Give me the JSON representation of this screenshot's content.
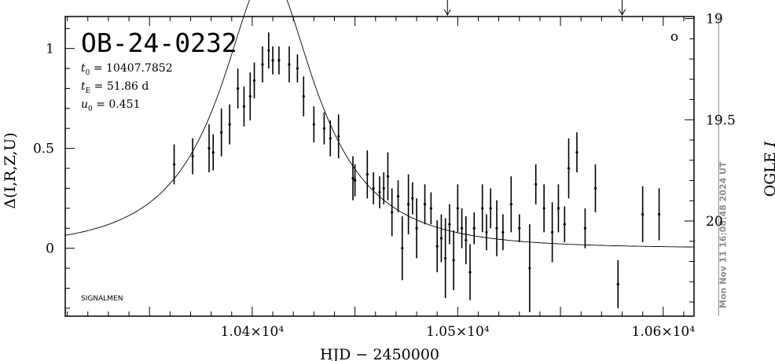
{
  "chart_data": {
    "type": "scatter",
    "title": "OB-24-0232",
    "xlabel": "HJD − 2450000",
    "ylabel": "Δ(I,R,Z,U)",
    "ylabel_right": "OGLE I",
    "xlim": [
      10309,
      10615
    ],
    "ylim": [
      -0.34,
      1.16
    ],
    "x_ticks": [
      {
        "value": 10400,
        "label": "1.04×10⁴"
      },
      {
        "value": 10500,
        "label": "1.05×10⁴"
      },
      {
        "value": 10600,
        "label": "1.06×10⁴"
      }
    ],
    "y_ticks": [
      {
        "value": 0,
        "label": "0"
      },
      {
        "value": 0.5,
        "label": "0.5"
      },
      {
        "value": 1,
        "label": "1"
      }
    ],
    "right_axis_ticks": [
      {
        "value": 19,
        "label": "19"
      },
      {
        "value": 19.5,
        "label": "19.5"
      },
      {
        "value": 20,
        "label": "20"
      }
    ],
    "right_axis_range": [
      18.99,
      20.47
    ],
    "grid": false,
    "params": [
      {
        "symbol": "t",
        "sub": "0",
        "text": " = 10407.7852"
      },
      {
        "symbol": "t",
        "sub": "E",
        "text": " = 51.86 d"
      },
      {
        "symbol": "u",
        "sub": "0",
        "text": " = 0.451"
      }
    ],
    "timestamp": "Mon Nov 11 16:08:48 2024 UT",
    "timestamp_x": 10627,
    "marker_glyph": "o",
    "footer": "SIGNALMEN",
    "arrow_x": [
      10495,
      10580
    ],
    "model": {
      "t0": 10407.7852,
      "tE": 51.86,
      "u0": 0.451,
      "x_end": 10615
    },
    "points": [
      {
        "x": 10362,
        "y": 0.42,
        "e": 0.1
      },
      {
        "x": 10371,
        "y": 0.46,
        "e": 0.09
      },
      {
        "x": 10379,
        "y": 0.5,
        "e": 0.12
      },
      {
        "x": 10381,
        "y": 0.48,
        "e": 0.09
      },
      {
        "x": 10385,
        "y": 0.58,
        "e": 0.12
      },
      {
        "x": 10389,
        "y": 0.62,
        "e": 0.1
      },
      {
        "x": 10393,
        "y": 0.8,
        "e": 0.1
      },
      {
        "x": 10396,
        "y": 0.71,
        "e": 0.1
      },
      {
        "x": 10399,
        "y": 0.76,
        "e": 0.12
      },
      {
        "x": 10401,
        "y": 0.84,
        "e": 0.09
      },
      {
        "x": 10405,
        "y": 0.92,
        "e": 0.09
      },
      {
        "x": 10408,
        "y": 0.99,
        "e": 0.09
      },
      {
        "x": 10410,
        "y": 0.94,
        "e": 0.07
      },
      {
        "x": 10413,
        "y": 0.94,
        "e": 0.07
      },
      {
        "x": 10418,
        "y": 0.92,
        "e": 0.09
      },
      {
        "x": 10422,
        "y": 0.9,
        "e": 0.07
      },
      {
        "x": 10425,
        "y": 0.76,
        "e": 0.1
      },
      {
        "x": 10430,
        "y": 0.62,
        "e": 0.09
      },
      {
        "x": 10435,
        "y": 0.6,
        "e": 0.08
      },
      {
        "x": 10438,
        "y": 0.55,
        "e": 0.09
      },
      {
        "x": 10442,
        "y": 0.56,
        "e": 0.11
      },
      {
        "x": 10449,
        "y": 0.35,
        "e": 0.11
      },
      {
        "x": 10450,
        "y": 0.34,
        "e": 0.08
      },
      {
        "x": 10456,
        "y": 0.37,
        "e": 0.12
      },
      {
        "x": 10459,
        "y": 0.3,
        "e": 0.08
      },
      {
        "x": 10462,
        "y": 0.28,
        "e": 0.08
      },
      {
        "x": 10464,
        "y": 0.3,
        "e": 0.08
      },
      {
        "x": 10466,
        "y": 0.36,
        "e": 0.12
      },
      {
        "x": 10468,
        "y": 0.18,
        "e": 0.12
      },
      {
        "x": 10471,
        "y": 0.26,
        "e": 0.08
      },
      {
        "x": 10473,
        "y": 0.0,
        "e": 0.16
      },
      {
        "x": 10476,
        "y": 0.22,
        "e": 0.15
      },
      {
        "x": 10478,
        "y": 0.25,
        "e": 0.08
      },
      {
        "x": 10480,
        "y": 0.1,
        "e": 0.15
      },
      {
        "x": 10484,
        "y": 0.22,
        "e": 0.1
      },
      {
        "x": 10487,
        "y": 0.2,
        "e": 0.08
      },
      {
        "x": 10490,
        "y": 0.01,
        "e": 0.13
      },
      {
        "x": 10492,
        "y": 0.05,
        "e": 0.12
      },
      {
        "x": 10494,
        "y": -0.05,
        "e": 0.2
      },
      {
        "x": 10496,
        "y": 0.12,
        "e": 0.1
      },
      {
        "x": 10498,
        "y": -0.06,
        "e": 0.15
      },
      {
        "x": 10500,
        "y": 0.2,
        "e": 0.12
      },
      {
        "x": 10502,
        "y": 0.1,
        "e": 0.1
      },
      {
        "x": 10504,
        "y": 0.04,
        "e": 0.12
      },
      {
        "x": 10506,
        "y": -0.12,
        "e": 0.14
      },
      {
        "x": 10508,
        "y": 0.1,
        "e": 0.08
      },
      {
        "x": 10512,
        "y": 0.2,
        "e": 0.12
      },
      {
        "x": 10514,
        "y": 0.08,
        "e": 0.09
      },
      {
        "x": 10516,
        "y": 0.2,
        "e": 0.1
      },
      {
        "x": 10519,
        "y": 0.1,
        "e": 0.14
      },
      {
        "x": 10522,
        "y": 0.08,
        "e": 0.09
      },
      {
        "x": 10526,
        "y": 0.22,
        "e": 0.14
      },
      {
        "x": 10530,
        "y": 0.1,
        "e": 0.07
      },
      {
        "x": 10535,
        "y": -0.1,
        "e": 0.22
      },
      {
        "x": 10538,
        "y": 0.32,
        "e": 0.1
      },
      {
        "x": 10542,
        "y": 0.2,
        "e": 0.12
      },
      {
        "x": 10546,
        "y": 0.08,
        "e": 0.15
      },
      {
        "x": 10549,
        "y": 0.2,
        "e": 0.12
      },
      {
        "x": 10552,
        "y": 0.12,
        "e": 0.09
      },
      {
        "x": 10554,
        "y": 0.4,
        "e": 0.15
      },
      {
        "x": 10558,
        "y": 0.48,
        "e": 0.1
      },
      {
        "x": 10562,
        "y": 0.1,
        "e": 0.1
      },
      {
        "x": 10567,
        "y": 0.3,
        "e": 0.12
      },
      {
        "x": 10578,
        "y": -0.18,
        "e": 0.12
      },
      {
        "x": 10590,
        "y": 0.17,
        "e": 0.14
      },
      {
        "x": 10598,
        "y": 0.17,
        "e": 0.13
      }
    ]
  }
}
